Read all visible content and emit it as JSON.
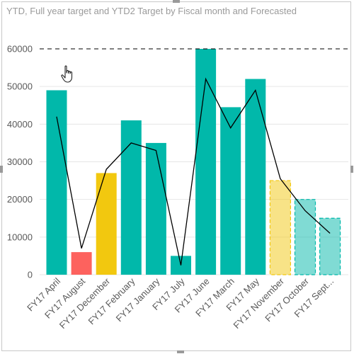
{
  "chart_data": {
    "type": "bar",
    "title": "YTD, Full year target  and YTD2 Target by Fiscal month and Forecasted",
    "categories": [
      "FY17 April",
      "FY17 August",
      "FY17 December",
      "FY17 February",
      "FY17 January",
      "FY17 July",
      "FY17 June",
      "FY17 March",
      "FY17 May",
      "FY17 November",
      "FY17 October",
      "FY17 Sept..."
    ],
    "series": [
      {
        "type": "bar",
        "values": [
          49000,
          6000,
          27000,
          41000,
          35000,
          5000,
          60000,
          44500,
          52000,
          25000,
          20000,
          15000
        ],
        "colors": [
          "#01b8aa",
          "#fd625e",
          "#f2c80f",
          "#01b8aa",
          "#01b8aa",
          "#01b8aa",
          "#01b8aa",
          "#01b8aa",
          "#01b8aa",
          "#f2c80f",
          "#01b8aa",
          "#01b8aa"
        ],
        "forecasted": [
          false,
          false,
          false,
          false,
          false,
          false,
          false,
          false,
          false,
          true,
          true,
          true
        ]
      },
      {
        "type": "line",
        "values": [
          42000,
          7000,
          28000,
          35000,
          33000,
          2500,
          52000,
          39000,
          49000,
          25500,
          17000,
          11000
        ],
        "color": "#000000"
      }
    ],
    "reference_line": {
      "value": 60000,
      "style": "dashed",
      "color": "#000000"
    },
    "y_ticks": [
      "0",
      "10000",
      "20000",
      "30000",
      "40000",
      "50000",
      "60000"
    ],
    "ylim": [
      0,
      60000
    ],
    "grid": true,
    "xlabel": "",
    "ylabel": ""
  },
  "icons": {
    "cursor": "hand-pointer-icon"
  }
}
